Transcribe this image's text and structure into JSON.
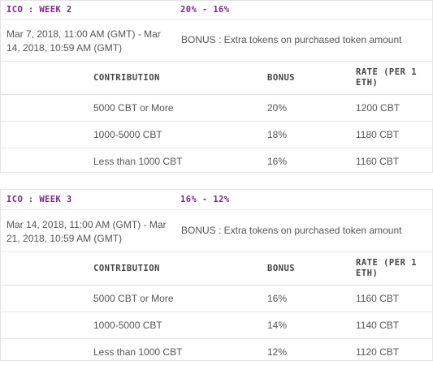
{
  "phases": [
    {
      "name": "ICO : WEEK 2",
      "bonus_range": "20% - 16%",
      "dates": "Mar 7, 2018, 11:00 AM (GMT) - Mar 14, 2018, 10:59 AM (GMT)",
      "bonus_note": "BONUS : Extra tokens on purchased token amount",
      "headers": {
        "contribution": "CONTRIBUTION",
        "bonus": "BONUS",
        "rate": "RATE (PER 1 ETH)"
      },
      "rows": [
        {
          "contribution": "5000 CBT or More",
          "bonus": "20%",
          "rate": "1200 CBT"
        },
        {
          "contribution": "1000-5000 CBT",
          "bonus": "18%",
          "rate": "1180 CBT"
        },
        {
          "contribution": "Less than 1000 CBT",
          "bonus": "16%",
          "rate": "1160 CBT"
        }
      ]
    },
    {
      "name": "ICO : WEEK 3",
      "bonus_range": "16% - 12%",
      "dates": "Mar 14, 2018, 11:00 AM (GMT) - Mar 21, 2018, 10:59 AM (GMT)",
      "bonus_note": "BONUS : Extra tokens on purchased token amount",
      "headers": {
        "contribution": "CONTRIBUTION",
        "bonus": "BONUS",
        "rate": "RATE (PER 1 ETH)"
      },
      "rows": [
        {
          "contribution": "5000 CBT or More",
          "bonus": "16%",
          "rate": "1160 CBT"
        },
        {
          "contribution": "1000-5000 CBT",
          "bonus": "14%",
          "rate": "1140 CBT"
        },
        {
          "contribution": "Less than 1000 CBT",
          "bonus": "12%",
          "rate": "1120 CBT"
        }
      ]
    }
  ],
  "colors": {
    "phase_accent": "#7a2b86",
    "border": "#e4e4e4",
    "text": "#555555"
  }
}
